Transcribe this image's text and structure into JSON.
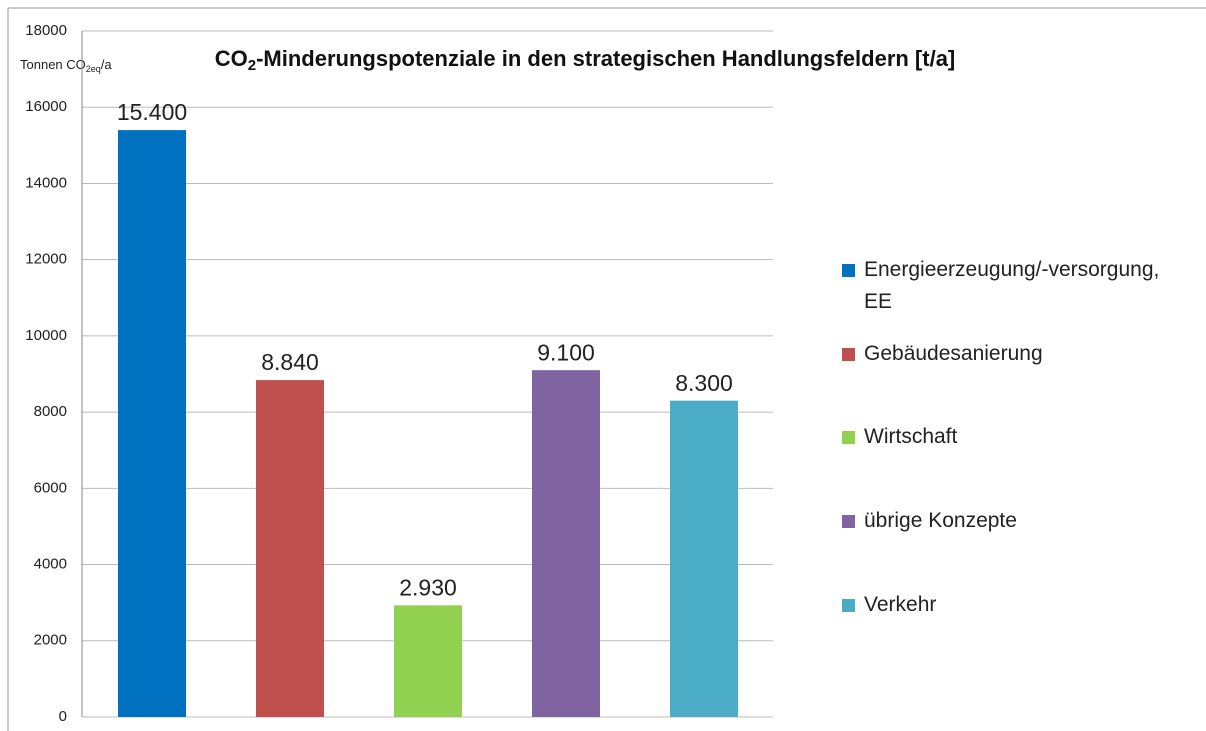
{
  "chart_data": {
    "type": "bar",
    "title": {
      "text": "CO",
      "sub": "2",
      "suffix": "-Minderungspotenziale in den strategischen Handlungsfeldern [t/a]"
    },
    "ylabel": {
      "text": "Tonnen CO",
      "sub": "2eq",
      "suffix": "/a"
    },
    "categories": [
      "Energieerzeugung/-versorgung, EE",
      "Gebäudesanierung",
      "Wirtschaft",
      "übrige Konzepte",
      "Verkehr"
    ],
    "values": [
      15400,
      8840,
      2930,
      9100,
      8300
    ],
    "value_labels": [
      "15.400",
      "8.840",
      "2.930",
      "9.100",
      "8.300"
    ],
    "colors": [
      "#0070c0",
      "#c0504d",
      "#92d050",
      "#8064a2",
      "#4bacc6"
    ],
    "ylim": [
      0,
      18000
    ],
    "yticks": [
      0,
      2000,
      4000,
      6000,
      8000,
      10000,
      12000,
      14000,
      16000,
      18000
    ],
    "grid": true,
    "legend": "right"
  }
}
